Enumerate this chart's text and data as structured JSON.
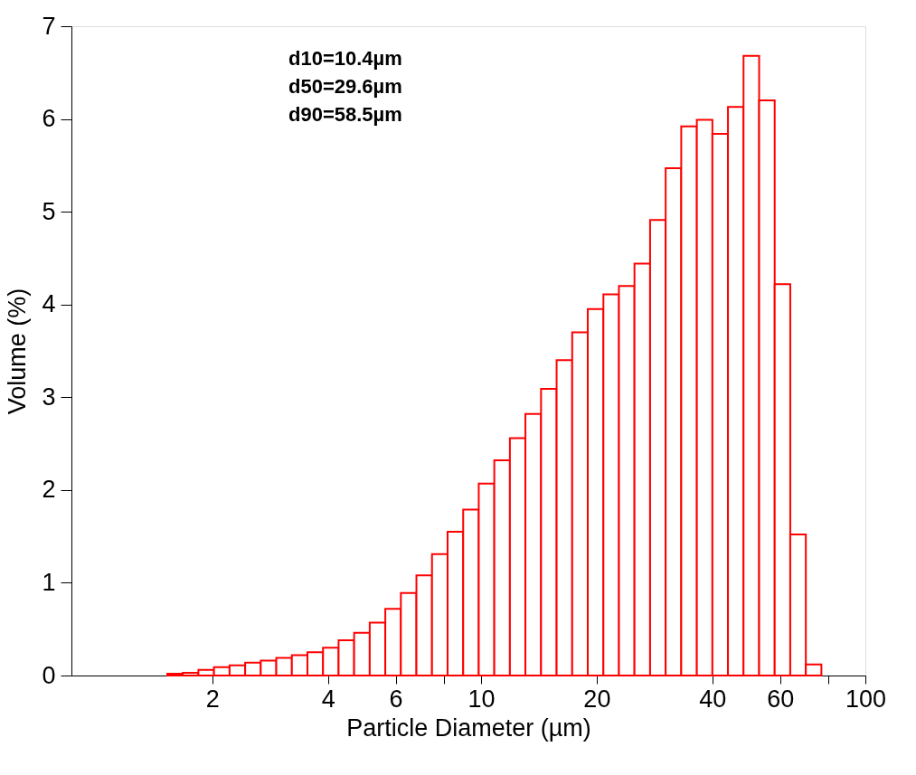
{
  "chart_data": {
    "type": "histogram",
    "xlabel": "Particle Diameter (µm)",
    "ylabel": "Volume (%)",
    "log": "x",
    "bins": [
      1.527,
      1.676,
      1.84,
      2.02,
      2.218,
      2.435,
      2.673,
      2.934,
      3.221,
      3.536,
      3.882,
      4.261,
      4.677,
      5.135,
      5.637,
      6.188,
      6.793,
      7.457,
      8.187,
      8.989,
      9.867,
      10.83,
      11.89,
      13.05,
      14.33,
      15.73,
      17.27,
      18.96,
      20.82,
      22.85,
      25.08,
      27.54,
      30.23,
      33.19,
      36.44,
      40.0,
      43.91,
      48.2,
      52.92,
      58.09,
      63.77,
      70.0,
      76.85
    ],
    "values": [
      0.02,
      0.03,
      0.06,
      0.09,
      0.11,
      0.14,
      0.16,
      0.19,
      0.22,
      0.25,
      0.3,
      0.38,
      0.46,
      0.57,
      0.72,
      0.89,
      1.08,
      1.31,
      1.55,
      1.79,
      2.07,
      2.32,
      2.56,
      2.82,
      3.09,
      3.4,
      3.7,
      3.95,
      4.11,
      4.2,
      4.44,
      4.91,
      5.47,
      5.92,
      5.99,
      5.84,
      6.13,
      6.68,
      6.2,
      4.22,
      1.52,
      0.12
    ],
    "color": "#ff0000",
    "xlim": [
      0.86,
      100
    ],
    "xticks": [
      2,
      4,
      6,
      {
        "value": 8,
        "label": null
      },
      10,
      20,
      40,
      60,
      {
        "value": 80,
        "label": null
      },
      100
    ],
    "ylim": [
      0,
      7
    ],
    "yticks": [
      0,
      1,
      2,
      3,
      4,
      5,
      6,
      7
    ],
    "grid": false,
    "annotations": [
      "d10=10.4µm",
      "d50=29.6µm",
      "d90=58.5µm"
    ]
  }
}
